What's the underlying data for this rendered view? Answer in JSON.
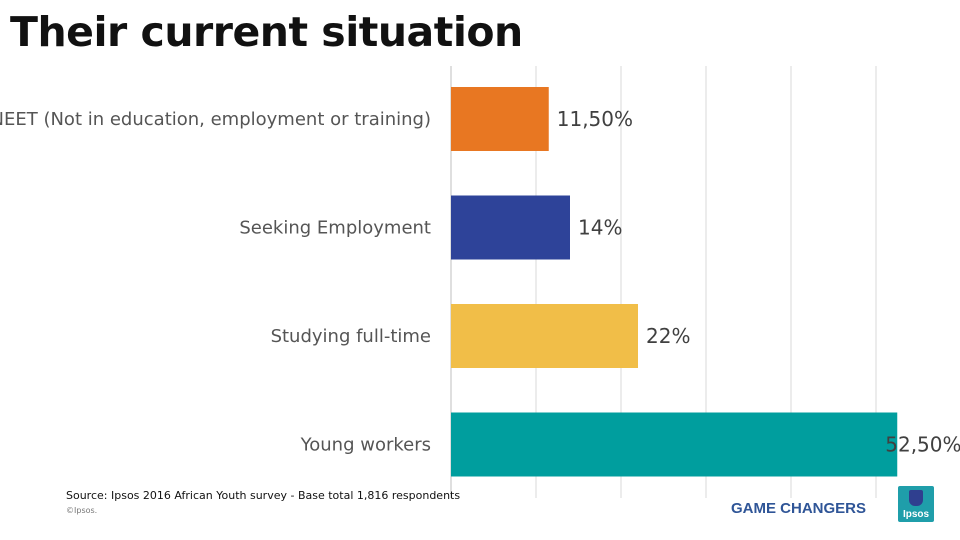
{
  "title": "Their current situation",
  "chart_data": {
    "type": "bar",
    "orientation": "horizontal",
    "categories": [
      "NEET (Not in education, employment or training)",
      "Seeking Employment",
      "Studying full-time",
      "Young workers"
    ],
    "values": [
      11.5,
      14,
      22,
      52.5
    ],
    "value_labels": [
      "11,50%",
      "14%",
      "22%",
      "52,50%"
    ],
    "colors": [
      "#e87722",
      "#2e4399",
      "#f1be48",
      "#009e9e"
    ],
    "xlim": [
      0,
      60
    ],
    "grid": true,
    "legend": "none"
  },
  "footer": {
    "source": "Source: Ipsos  2016 African Youth survey - Base total 1,816 respondents",
    "copyright": "©Ipsos.",
    "brand": "GAME CHANGERS",
    "logo_text": "Ipsos"
  }
}
